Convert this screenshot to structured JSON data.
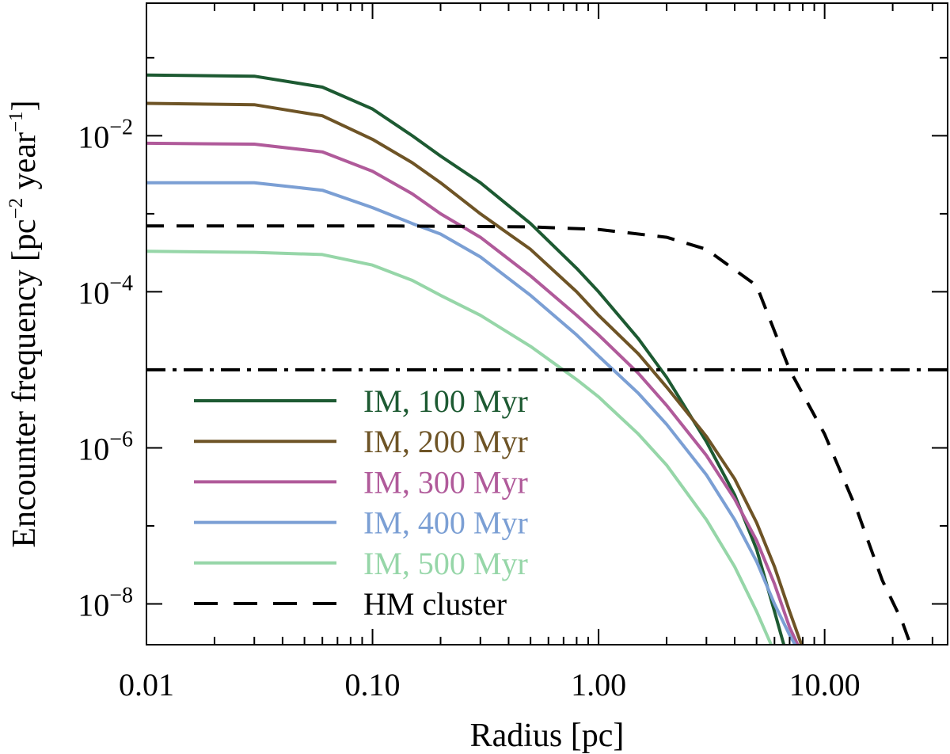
{
  "chart_data": {
    "type": "line",
    "title": "",
    "xlabel": "Radius [pc]",
    "ylabel": {
      "prefix": "Encounter frequency [pc",
      "exp1": "−2",
      "middle": " year",
      "exp2": "−1",
      "suffix": "]"
    },
    "x_scale": "log",
    "y_scale": "log",
    "xlim": [
      0.01,
      35
    ],
    "ylim": [
      3e-09,
      0.5
    ],
    "x_ticks": [
      {
        "value": 0.01,
        "label": "0.01"
      },
      {
        "value": 0.1,
        "label": "0.10"
      },
      {
        "value": 1,
        "label": "1.00"
      },
      {
        "value": 10,
        "label": "10.00"
      }
    ],
    "y_ticks": [
      {
        "value": 0.01,
        "base": "10",
        "exp": "−2"
      },
      {
        "value": 0.0001,
        "base": "10",
        "exp": "−4"
      },
      {
        "value": 1e-06,
        "base": "10",
        "exp": "−6"
      },
      {
        "value": 1e-08,
        "base": "10",
        "exp": "−8"
      }
    ],
    "legend_position": "bottom-left",
    "series": [
      {
        "name": "IM, 100 Myr",
        "color": "#1d5a32",
        "style": "solid",
        "x": [
          0.01,
          0.03,
          0.06,
          0.1,
          0.15,
          0.2,
          0.3,
          0.5,
          0.8,
          1.0,
          1.5,
          2.0,
          3.0,
          4.0,
          5.0,
          6.0,
          6.6
        ],
        "y": [
          0.06,
          0.058,
          0.042,
          0.022,
          0.01,
          0.0055,
          0.0025,
          0.00075,
          0.0002,
          0.0001,
          2.5e-05,
          8e-06,
          1.2e-06,
          2.5e-07,
          5e-08,
          8e-09,
          3e-09
        ]
      },
      {
        "name": "IM, 200 Myr",
        "color": "#6e5426",
        "style": "solid",
        "x": [
          0.01,
          0.03,
          0.06,
          0.1,
          0.15,
          0.2,
          0.3,
          0.5,
          0.8,
          1.0,
          1.5,
          2.0,
          3.0,
          4.0,
          5.0,
          6.0,
          7.0,
          7.9
        ],
        "y": [
          0.026,
          0.025,
          0.018,
          0.009,
          0.0045,
          0.0025,
          0.001,
          0.00035,
          0.0001,
          5e-05,
          1.6e-05,
          6e-06,
          1.4e-06,
          4e-07,
          1.1e-07,
          3e-08,
          8e-09,
          3e-09
        ]
      },
      {
        "name": "IM, 300 Myr",
        "color": "#b05a9a",
        "style": "solid",
        "x": [
          0.01,
          0.03,
          0.06,
          0.1,
          0.15,
          0.2,
          0.3,
          0.5,
          0.8,
          1.0,
          1.5,
          2.0,
          3.0,
          4.0,
          5.0,
          6.0,
          7.0,
          7.6
        ],
        "y": [
          0.008,
          0.0078,
          0.0062,
          0.0035,
          0.0018,
          0.001,
          0.0005,
          0.00016,
          5e-05,
          2.8e-05,
          9e-06,
          3.5e-06,
          8e-07,
          2.2e-07,
          6.5e-08,
          1.8e-08,
          5e-09,
          3e-09
        ]
      },
      {
        "name": "IM, 400 Myr",
        "color": "#7b9fd4",
        "style": "solid",
        "x": [
          0.01,
          0.03,
          0.06,
          0.1,
          0.15,
          0.2,
          0.3,
          0.5,
          0.8,
          1.0,
          1.5,
          2.0,
          3.0,
          4.0,
          5.0,
          6.0,
          7.0,
          7.4
        ],
        "y": [
          0.0025,
          0.0025,
          0.002,
          0.0012,
          0.00075,
          0.00055,
          0.00028,
          9e-05,
          2.8e-05,
          1.5e-05,
          5e-06,
          2e-06,
          4.5e-07,
          1.2e-07,
          3.5e-08,
          1e-08,
          4e-09,
          3e-09
        ]
      },
      {
        "name": "IM, 500 Myr",
        "color": "#96d6a8",
        "style": "solid",
        "x": [
          0.01,
          0.03,
          0.06,
          0.1,
          0.15,
          0.2,
          0.3,
          0.5,
          0.8,
          1.0,
          1.5,
          2.0,
          3.0,
          4.0,
          5.0,
          5.8
        ],
        "y": [
          0.00033,
          0.00032,
          0.0003,
          0.00022,
          0.00014,
          9e-05,
          5e-05,
          2e-05,
          7.5e-06,
          4.5e-06,
          1.5e-06,
          6e-07,
          1.2e-07,
          3e-08,
          8e-09,
          3e-09
        ]
      },
      {
        "name": "HM cluster",
        "color": "#000000",
        "style": "dashed",
        "x": [
          0.01,
          0.1,
          0.5,
          1.0,
          2.0,
          3.0,
          5.0,
          7.0,
          10.0,
          14.0,
          18.0,
          22.0,
          24.0
        ],
        "y": [
          0.0007,
          0.0007,
          0.00068,
          0.00063,
          0.0005,
          0.00035,
          0.00012,
          1e-05,
          1.5e-06,
          1.5e-07,
          2e-08,
          6e-09,
          3e-09
        ]
      },
      {
        "name": "",
        "color": "#000000",
        "style": "dashdot",
        "x": [
          0.01,
          35
        ],
        "y": [
          1e-05,
          1e-05
        ]
      }
    ]
  }
}
